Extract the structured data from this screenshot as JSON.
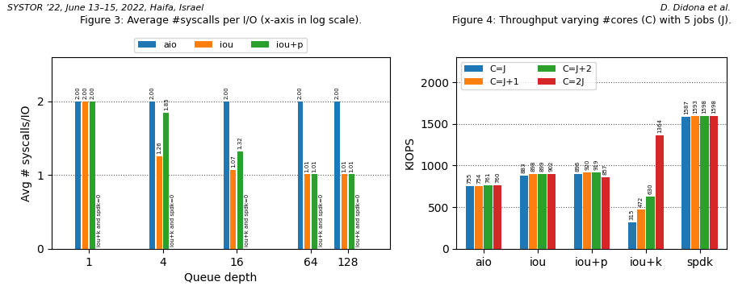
{
  "annotations": [
    "SYSTOR ’22, June 13–15, 2022, Haifa, Israel",
    "D. Didona et al."
  ],
  "chart_data": [
    {
      "type": "bar",
      "title": "Figure 3: Average #syscalls per I/O (x-axis in log scale).",
      "xlabel": "Queue depth",
      "ylabel": "Avg # syscalls/IO",
      "x": [
        1,
        4,
        16,
        64,
        128
      ],
      "log": "x",
      "xlim": [
        0.5,
        280
      ],
      "xticks": [
        1,
        4,
        16,
        64,
        128
      ],
      "ylim": [
        0,
        2.6
      ],
      "yticks": [
        0,
        1,
        2
      ],
      "grid": true,
      "legend": "top",
      "data_labels": true,
      "series": [
        {
          "name": "aio",
          "values": [
            2.0,
            2.0,
            2.0,
            2.0,
            2.0
          ],
          "value_labels": [
            "2.00",
            "2.00",
            "2.00",
            "2.00",
            "2.00"
          ]
        },
        {
          "name": "iou",
          "values": [
            2.0,
            1.26,
            1.07,
            1.01,
            1.01
          ],
          "value_labels": [
            "2.00",
            "1.26",
            "1.07",
            "1.01",
            "1.01"
          ]
        },
        {
          "name": "iou+p",
          "values": [
            2.0,
            1.85,
            1.32,
            1.01,
            1.01
          ],
          "value_labels": [
            "2.00",
            "1.85",
            "1.32",
            "1.01",
            "1.01"
          ]
        },
        {
          "values": [
            0,
            0,
            0,
            0,
            0
          ],
          "annotation": "iou+k and spdk=0"
        }
      ]
    },
    {
      "type": "bar",
      "title": "Figure 4: Throughput varying #cores (C) with 5 jobs (J).",
      "ylabel": "KIOPS",
      "categories": [
        "aio",
        "iou",
        "iou+p",
        "iou+k",
        "spdk"
      ],
      "ylim": [
        0,
        2300
      ],
      "yticks": [
        0,
        500,
        1000,
        1500,
        2000
      ],
      "grid": true,
      "legend": "upper left",
      "data_labels": true,
      "series": [
        {
          "name": "C=J",
          "values": [
            755,
            883,
            896,
            315,
            1587
          ]
        },
        {
          "name": "C=J+1",
          "values": [
            754,
            898,
            920,
            472,
            1593
          ]
        },
        {
          "name": "C=J+2",
          "values": [
            761,
            899,
            919,
            630,
            1598
          ]
        },
        {
          "name": "C=2J",
          "values": [
            760,
            902,
            857,
            1364,
            1598
          ]
        }
      ]
    }
  ]
}
